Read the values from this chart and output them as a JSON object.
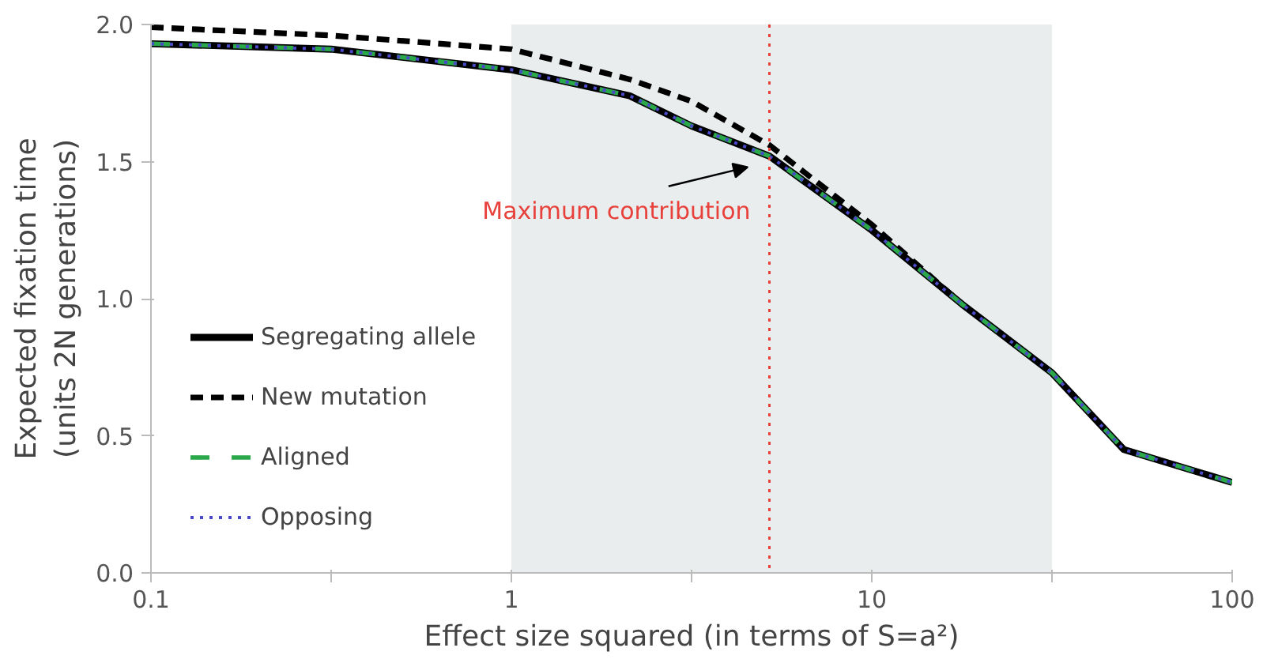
{
  "chart_data": {
    "type": "line",
    "xlabel": "Effect size squared (in terms of S=a²)",
    "ylabel": "Expected fixation time\n(units 2N generations)",
    "log": "x",
    "xlim": [
      0.1,
      100
    ],
    "ylim": [
      0,
      2.0
    ],
    "xticks": [
      0.1,
      1,
      10,
      100,
      {
        "value": 0.316,
        "label": null
      },
      {
        "value": 3.16,
        "label": null
      },
      {
        "value": 31.6,
        "label": null
      }
    ],
    "yticks": [
      {
        "value": 0,
        "label": "0.0"
      },
      {
        "value": 0.5,
        "label": "0.5"
      },
      {
        "value": 1.0,
        "label": "1.0"
      },
      {
        "value": 1.5,
        "label": "1.5"
      },
      {
        "value": 2.0,
        "label": "2.0"
      }
    ],
    "grid": false,
    "legend": "bottom left",
    "series": [
      {
        "name": "Segregating allele",
        "color": "#000000",
        "line_style": "solid",
        "x": [
          0.1,
          0.316,
          1,
          2.13,
          3.16,
          5.2,
          10,
          17.8,
          31.6,
          50,
          100
        ],
        "values": [
          1.93,
          1.91,
          1.835,
          1.74,
          1.63,
          1.52,
          1.25,
          0.98,
          0.73,
          0.45,
          0.33
        ]
      },
      {
        "name": "New mutation",
        "color": "#000000",
        "line_style": "dashed",
        "x": [
          0.1,
          0.316,
          1,
          2.13,
          3.16,
          5.2,
          10,
          17.8,
          31.6,
          50,
          100
        ],
        "values": [
          1.99,
          1.96,
          1.91,
          1.8,
          1.72,
          1.56,
          1.27,
          0.98,
          0.73,
          0.45,
          0.33
        ]
      },
      {
        "name": "Aligned",
        "color": "#2aa84a",
        "line_style": "longdash",
        "x": [
          0.1,
          0.316,
          1,
          2.13,
          3.16,
          5.2,
          10,
          17.8,
          31.6,
          50,
          100
        ],
        "values": [
          1.93,
          1.91,
          1.835,
          1.74,
          1.63,
          1.52,
          1.25,
          0.98,
          0.73,
          0.45,
          0.33
        ]
      },
      {
        "name": "Opposing",
        "color": "#4a4ac8",
        "line_style": "dotted",
        "x": [
          0.1,
          0.316,
          1,
          2.13,
          3.16,
          5.2,
          10,
          17.8,
          31.6,
          50,
          100
        ],
        "values": [
          1.93,
          1.91,
          1.835,
          1.74,
          1.63,
          1.52,
          1.25,
          0.98,
          0.73,
          0.45,
          0.33
        ]
      }
    ],
    "bands": [
      {
        "axis": "x",
        "from": 1,
        "to": 31.6,
        "color": "#e9eded"
      }
    ],
    "ref_lines": [
      {
        "axis": "x",
        "value": 5.2,
        "label": "Maximum contribution",
        "color": "#e8403a",
        "line_style": "dotted"
      }
    ]
  }
}
